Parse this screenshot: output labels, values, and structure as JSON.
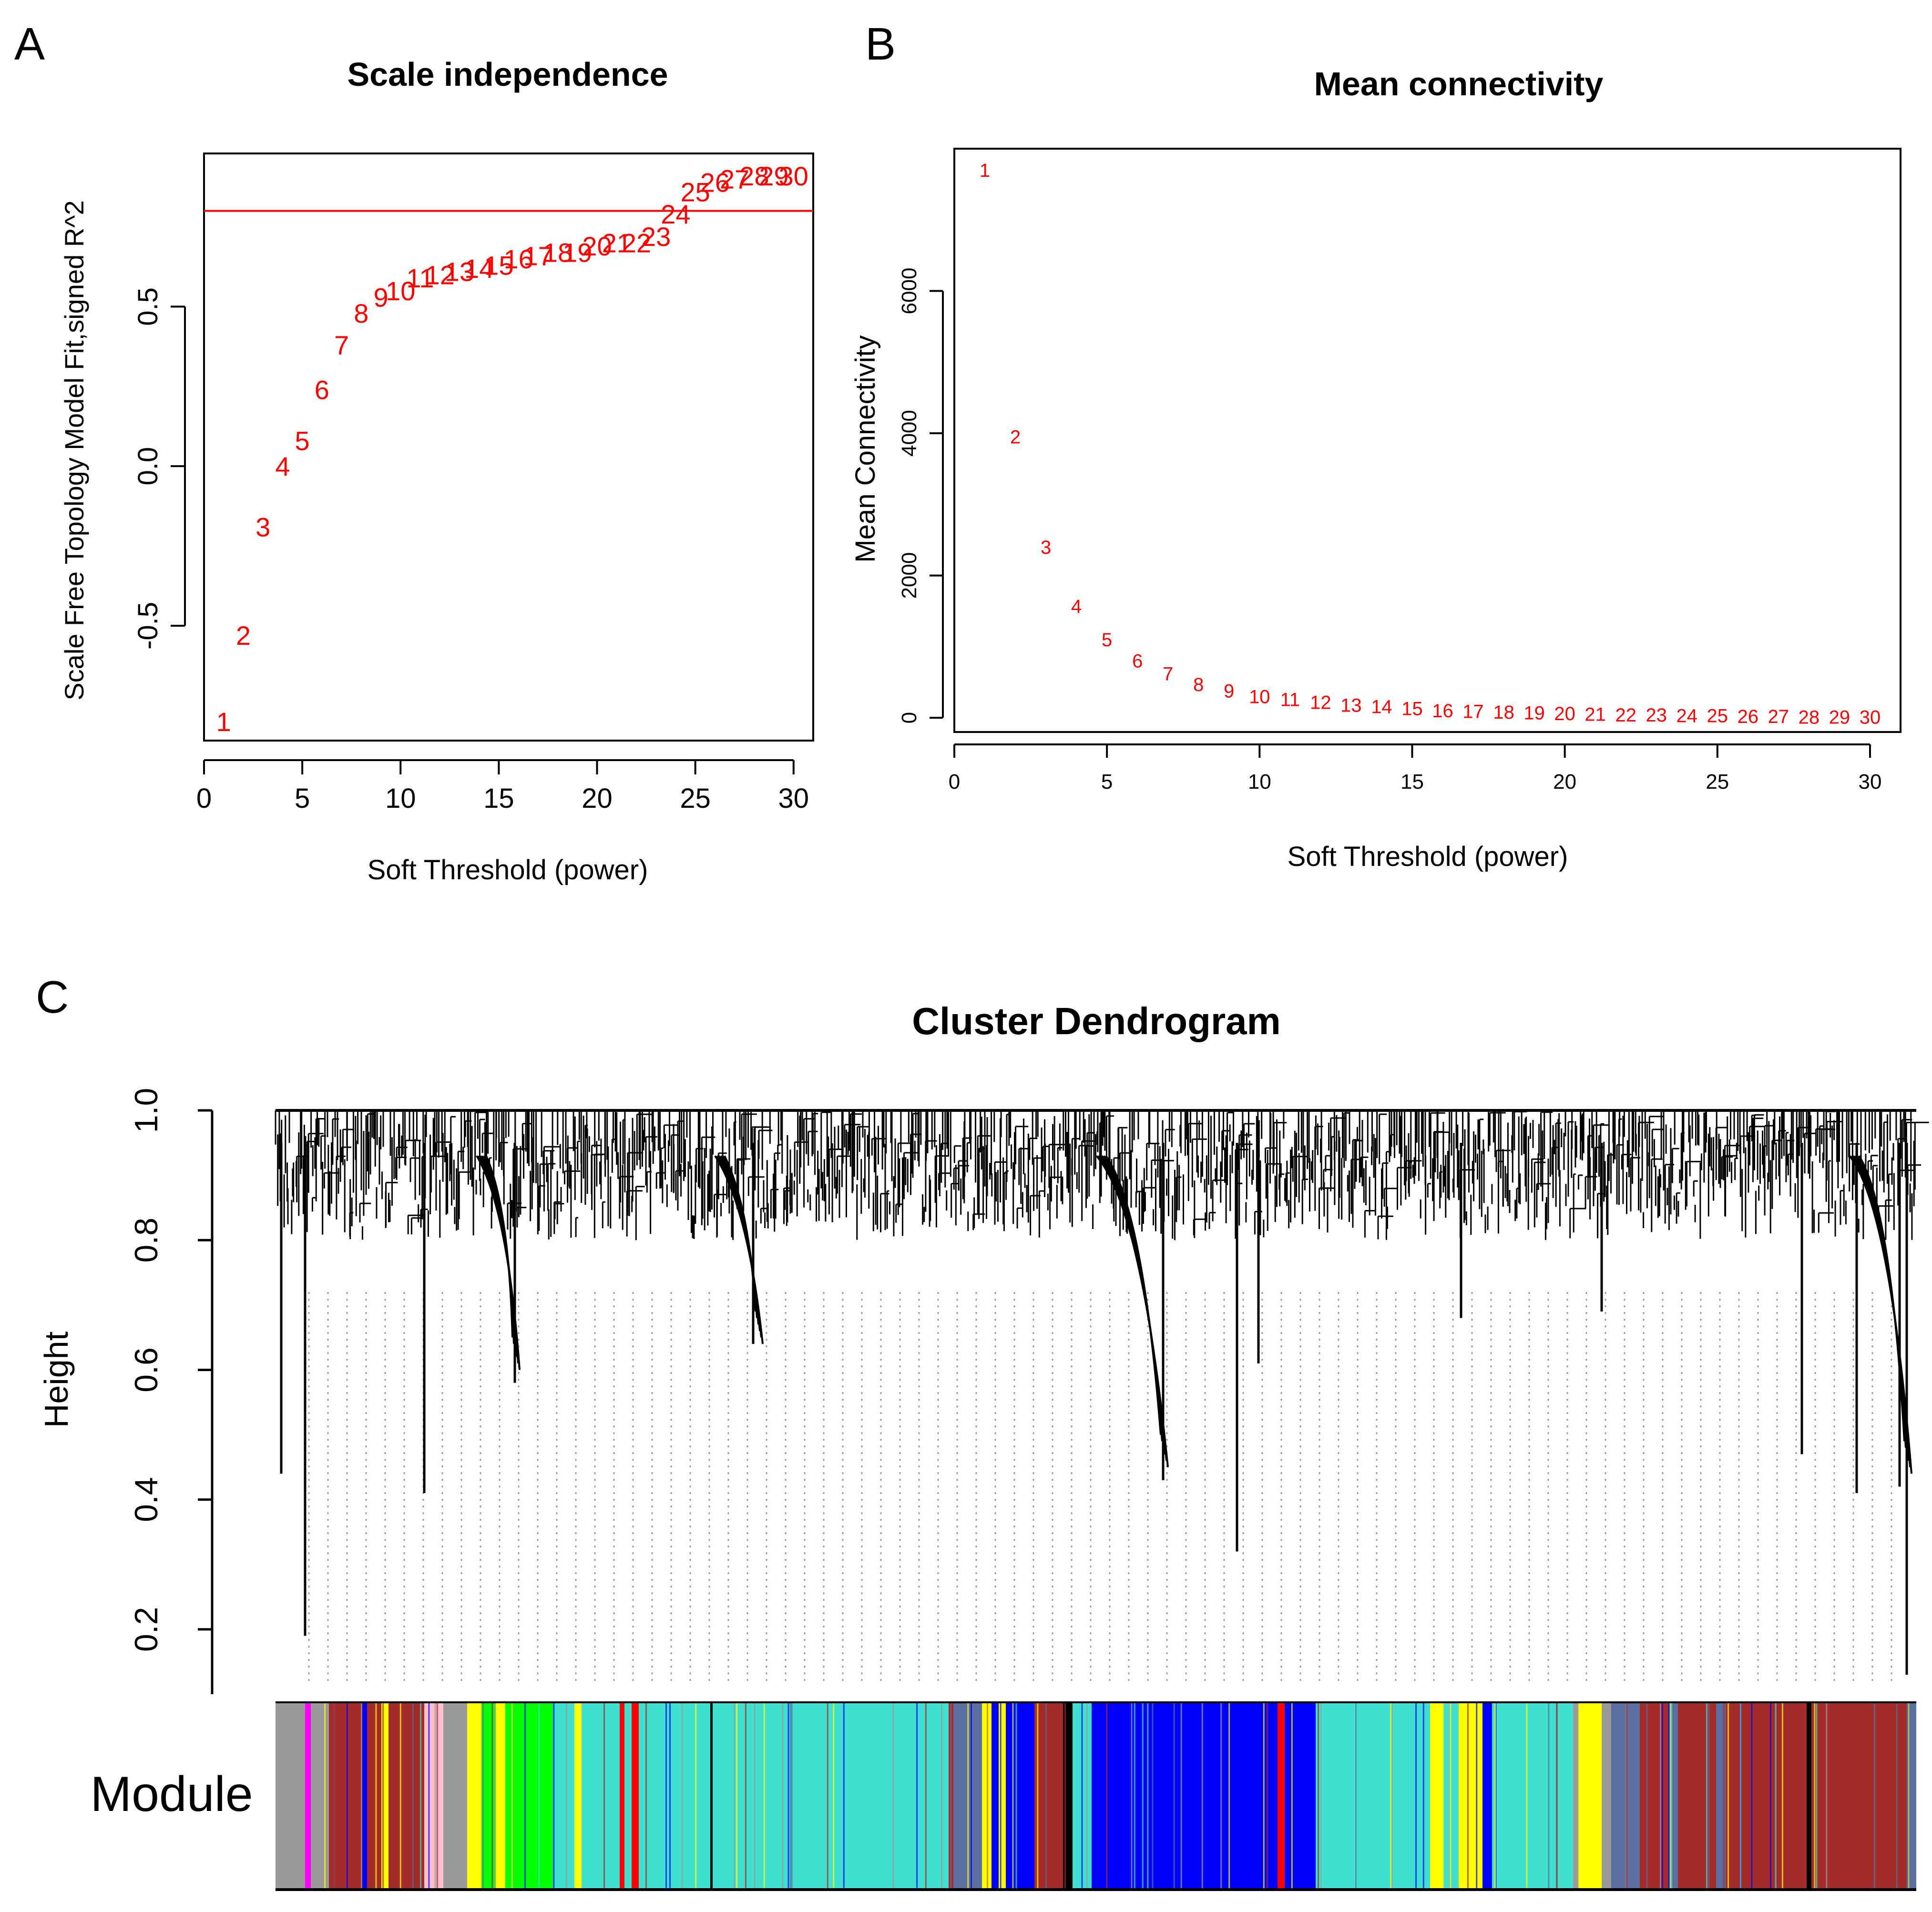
{
  "chart_data": [
    {
      "panel": "A",
      "type": "scatter",
      "title": "Scale independence",
      "xlabel": "Soft Threshold (power)",
      "ylabel": "Scale Free Topology Model Fit,signed R^2",
      "xlim": [
        0,
        31
      ],
      "ylim": [
        -0.86,
        0.98
      ],
      "xticks": [
        "0",
        "5",
        "10",
        "15",
        "20",
        "25",
        "30"
      ],
      "yticks": [
        "-0.5",
        "0.0",
        "0.5"
      ],
      "threshold_line": 0.8,
      "point_color": "#ff0000",
      "labels": [
        "1",
        "2",
        "3",
        "4",
        "5",
        "6",
        "7",
        "8",
        "9",
        "10",
        "11",
        "12",
        "13",
        "14",
        "15",
        "16",
        "17",
        "18",
        "19",
        "20",
        "21",
        "22",
        "23",
        "24",
        "25",
        "26",
        "27",
        "28",
        "29",
        "30"
      ],
      "x": [
        1,
        2,
        3,
        4,
        5,
        6,
        7,
        8,
        9,
        10,
        11,
        12,
        13,
        14,
        15,
        16,
        17,
        18,
        19,
        20,
        21,
        22,
        23,
        24,
        25,
        26,
        27,
        28,
        29,
        30
      ],
      "y": [
        -0.8,
        -0.53,
        -0.19,
        0.0,
        0.08,
        0.24,
        0.38,
        0.48,
        0.53,
        0.55,
        0.59,
        0.6,
        0.61,
        0.62,
        0.63,
        0.65,
        0.66,
        0.67,
        0.67,
        0.69,
        0.7,
        0.7,
        0.72,
        0.79,
        0.86,
        0.89,
        0.9,
        0.91,
        0.91,
        0.91
      ]
    },
    {
      "panel": "B",
      "type": "scatter",
      "title": "Mean connectivity",
      "xlabel": "Soft Threshold (power)",
      "ylabel": "Mean Connectivity",
      "xlim": [
        0,
        31
      ],
      "ylim": [
        -200,
        8000
      ],
      "xticks": [
        "0",
        "5",
        "10",
        "15",
        "20",
        "25",
        "30"
      ],
      "yticks": [
        "0",
        "2000",
        "4000",
        "6000"
      ],
      "point_color": "#ff0000",
      "labels": [
        "1",
        "2",
        "3",
        "4",
        "5",
        "6",
        "7",
        "8",
        "9",
        "10",
        "11",
        "12",
        "13",
        "14",
        "15",
        "16",
        "17",
        "18",
        "19",
        "20",
        "21",
        "22",
        "23",
        "24",
        "25",
        "26",
        "27",
        "28",
        "29",
        "30"
      ],
      "x": [
        1,
        2,
        3,
        4,
        5,
        6,
        7,
        8,
        9,
        10,
        11,
        12,
        13,
        14,
        15,
        16,
        17,
        18,
        19,
        20,
        21,
        22,
        23,
        24,
        25,
        26,
        27,
        28,
        29,
        30
      ],
      "y": [
        7700,
        3950,
        2400,
        1570,
        1100,
        800,
        620,
        470,
        380,
        300,
        260,
        220,
        180,
        160,
        130,
        100,
        90,
        80,
        70,
        60,
        50,
        40,
        40,
        30,
        30,
        20,
        20,
        10,
        10,
        10
      ]
    },
    {
      "panel": "C",
      "type": "dendrogram",
      "title": "Cluster Dendrogram",
      "ylabel": "Height",
      "ylim": [
        0.1,
        1.0
      ],
      "yticks": [
        "0.2",
        "0.4",
        "0.6",
        "0.8",
        "1.0"
      ],
      "color_bar_label": "Module",
      "module_colors": [
        "turquoise",
        "blue",
        "brown",
        "yellow",
        "green",
        "red",
        "black",
        "pink",
        "magenta",
        "grey"
      ]
    }
  ],
  "panel_labels": [
    "A",
    "B",
    "C"
  ]
}
